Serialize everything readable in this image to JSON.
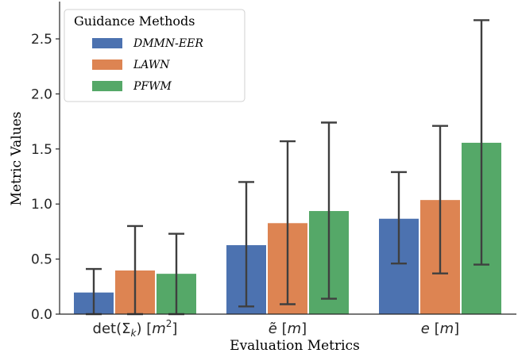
{
  "chart_data": {
    "type": "bar",
    "xlabel": "Evaluation Metrics",
    "ylabel": "Metric Values",
    "ylim": [
      0,
      2.75
    ],
    "yticks": [
      "0.0",
      "0.5",
      "1.0",
      "1.5",
      "2.0",
      "2.5"
    ],
    "grid": false,
    "legend": {
      "title": "Guidance Methods",
      "placement": "top-left"
    },
    "categories": [
      {
        "prefix": "det(Σ",
        "sub": "k",
        "mid": ")  [",
        "var": "m",
        "sup": "2",
        "suffix": "]"
      },
      {
        "prefix": "",
        "var": "ẽ",
        "mid": " [",
        "var2": "m",
        "suffix": "]"
      },
      {
        "prefix": "",
        "var": "e",
        "mid": " [",
        "var2": "m",
        "suffix": "]"
      }
    ],
    "series": [
      {
        "name": "DMMN-EER",
        "color": "#4c72b0",
        "values": [
          0.2,
          0.63,
          0.87
        ],
        "err_low": [
          0.0,
          0.07,
          0.46
        ],
        "err_high": [
          0.41,
          1.2,
          1.29
        ]
      },
      {
        "name": "LAWN",
        "color": "#dd8452",
        "values": [
          0.4,
          0.83,
          1.04
        ],
        "err_low": [
          0.0,
          0.09,
          0.37
        ],
        "err_high": [
          0.8,
          1.57,
          1.71
        ]
      },
      {
        "name": "PFWM",
        "color": "#55a868",
        "values": [
          0.37,
          0.94,
          1.56
        ],
        "err_low": [
          0.0,
          0.14,
          0.45
        ],
        "err_high": [
          0.73,
          1.74,
          2.67
        ]
      }
    ]
  }
}
